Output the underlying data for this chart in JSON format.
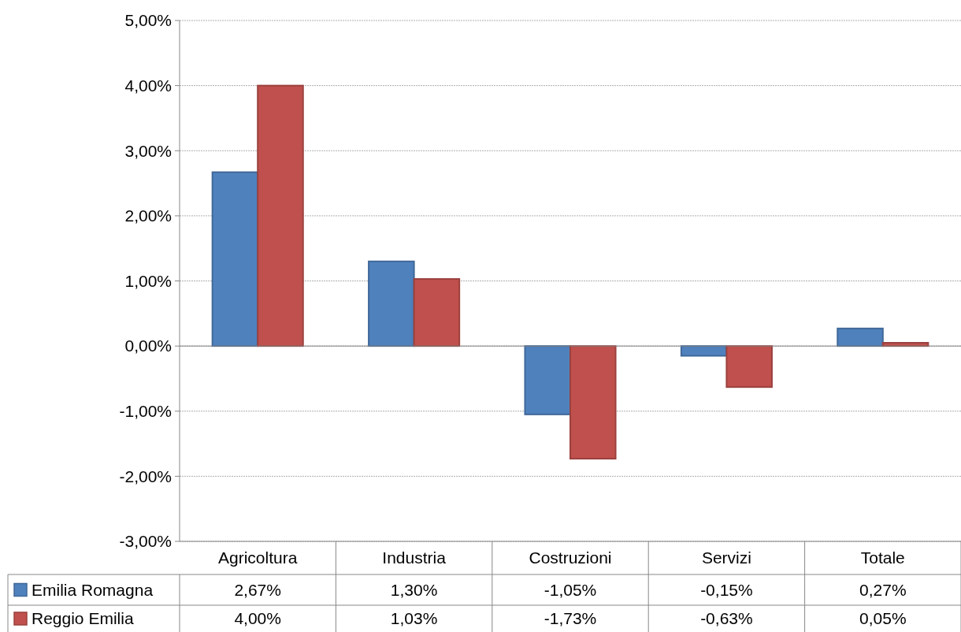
{
  "chart_data": {
    "type": "bar",
    "categories": [
      "Agricoltura",
      "Industria",
      "Costruzioni",
      "Servizi",
      "Totale"
    ],
    "series": [
      {
        "name": "Emilia Romagna",
        "color": "#4f81bd",
        "values": [
          2.67,
          1.3,
          -1.05,
          -0.15,
          0.27
        ],
        "value_labels": [
          "2,67%",
          "1,30%",
          "-1,05%",
          "-0,15%",
          "0,27%"
        ]
      },
      {
        "name": "Reggio Emilia",
        "color": "#c0504d",
        "values": [
          4.0,
          1.03,
          -1.73,
          -0.63,
          0.05
        ],
        "value_labels": [
          "4,00%",
          "1,03%",
          "-1,73%",
          "-0,63%",
          "0,05%"
        ]
      }
    ],
    "ylim": [
      -3,
      5
    ],
    "yticks": [
      {
        "value": -3,
        "label": "-3,00%"
      },
      {
        "value": -2,
        "label": "-2,00%"
      },
      {
        "value": -1,
        "label": "-1,00%"
      },
      {
        "value": 0,
        "label": "0,00%"
      },
      {
        "value": 1,
        "label": "1,00%"
      },
      {
        "value": 2,
        "label": "2,00%"
      },
      {
        "value": 3,
        "label": "3,00%"
      },
      {
        "value": 4,
        "label": "4,00%"
      },
      {
        "value": 5,
        "label": "5,00%"
      }
    ],
    "grid": "y",
    "legend": "bottom"
  }
}
